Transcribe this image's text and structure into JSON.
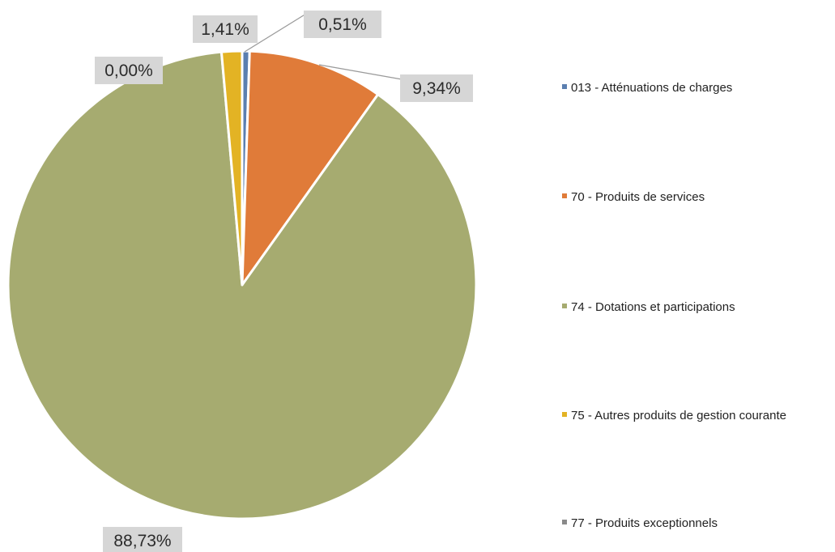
{
  "chart_data": {
    "type": "pie",
    "title": "",
    "legend_position": "right",
    "start_angle_deg": 0,
    "direction": "clockwise",
    "series": [
      {
        "name": "013 - Atténuations de charges",
        "value": 0.51,
        "label": "0,51%",
        "color": "#5b7fb0"
      },
      {
        "name": "70 - Produits de services",
        "value": 9.34,
        "label": "9,34%",
        "color": "#e07b39"
      },
      {
        "name": "74 - Dotations et participations",
        "value": 88.73,
        "label": "88,73%",
        "color": "#a6ab70"
      },
      {
        "name": "75 - Autres produits de gestion courante",
        "value": 1.41,
        "label": "1,41%",
        "color": "#e3b324"
      },
      {
        "name": "77 - Produits exceptionnels",
        "value": 0.0,
        "label": "0,00%",
        "color": "#8a8a8a"
      }
    ]
  }
}
